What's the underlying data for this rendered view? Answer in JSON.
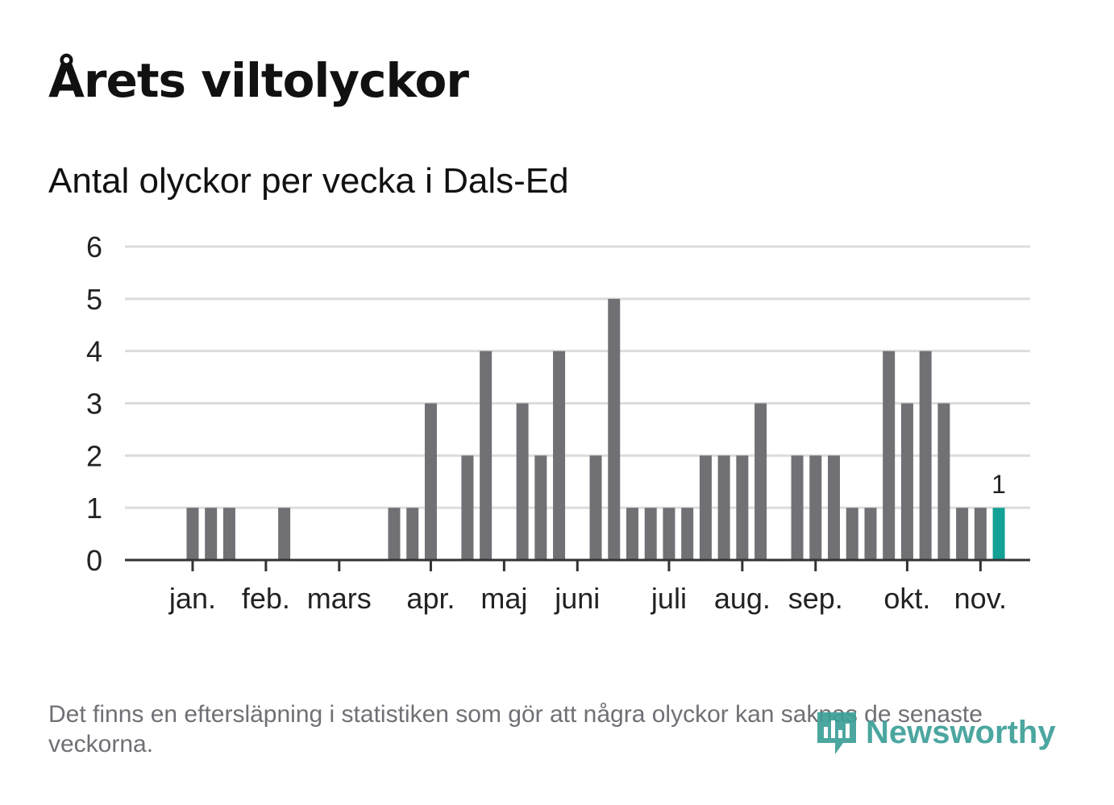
{
  "title": "Årets viltolyckor",
  "subtitle": "Antal olyckor per vecka i Dals-Ed",
  "footnote": "Det finns en eftersläpning i statistiken som gör att några olyckor kan saknas de senaste veckorna.",
  "logo": {
    "text": "Newsworthy",
    "icon": "newsworthy-logo-icon"
  },
  "colors": {
    "bar": "#717075",
    "highlight": "#14a195",
    "grid": "#dcdcdc",
    "axis": "#333333",
    "text": "#222222"
  },
  "chart_data": {
    "type": "bar",
    "title": "Antal olyckor per vecka i Dals-Ed",
    "xlabel": "",
    "ylabel": "",
    "ylim": [
      0,
      6
    ],
    "yticks": [
      "0",
      "1",
      "2",
      "3",
      "4",
      "5",
      "6"
    ],
    "grid": true,
    "x": [
      1,
      2,
      3,
      4,
      5,
      6,
      7,
      8,
      9,
      10,
      11,
      12,
      13,
      14,
      15,
      16,
      17,
      18,
      19,
      20,
      21,
      22,
      23,
      24,
      25,
      26,
      27,
      28,
      29,
      30,
      31,
      32,
      33,
      34,
      35,
      36,
      37,
      38,
      39,
      40,
      41,
      42,
      43,
      44,
      45,
      46,
      47,
      48,
      49
    ],
    "values": [
      0,
      0,
      1,
      1,
      1,
      0,
      0,
      1,
      0,
      0,
      0,
      0,
      0,
      1,
      1,
      3,
      0,
      2,
      4,
      0,
      3,
      2,
      4,
      0,
      2,
      5,
      1,
      1,
      1,
      1,
      2,
      2,
      2,
      3,
      0,
      2,
      2,
      2,
      1,
      1,
      4,
      3,
      4,
      3,
      1,
      1,
      1,
      0,
      0
    ],
    "highlight_index": 46,
    "highlight_label": "1",
    "month_ticks": [
      {
        "label": "jan.",
        "x": 3
      },
      {
        "label": "feb.",
        "x": 7
      },
      {
        "label": "mars",
        "x": 11
      },
      {
        "label": "apr.",
        "x": 16
      },
      {
        "label": "maj",
        "x": 20
      },
      {
        "label": "juni",
        "x": 24
      },
      {
        "label": "juli",
        "x": 29
      },
      {
        "label": "aug.",
        "x": 33
      },
      {
        "label": "sep.",
        "x": 37
      },
      {
        "label": "okt.",
        "x": 42
      },
      {
        "label": "nov.",
        "x": 46
      }
    ]
  }
}
